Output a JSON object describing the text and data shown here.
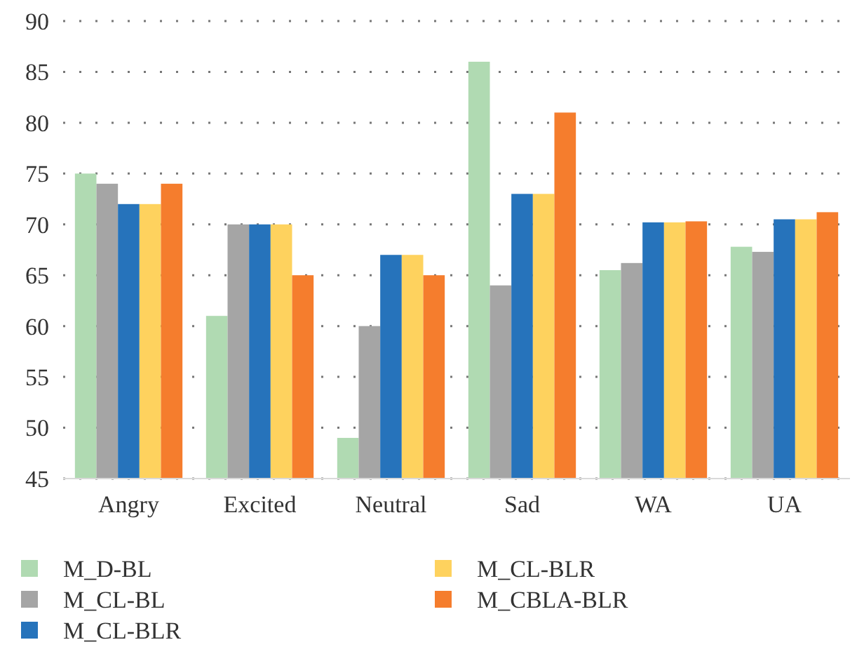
{
  "chart_data": {
    "type": "bar",
    "categories": [
      "Angry",
      "Excited",
      "Neutral",
      "Sad",
      "WA",
      "UA"
    ],
    "series": [
      {
        "name": "M_D-BL",
        "color": "#b0dab2",
        "values": [
          75,
          61,
          49,
          86,
          65.5,
          67.8
        ]
      },
      {
        "name": "M_CL-BL",
        "color": "#a5a5a5",
        "values": [
          74,
          70,
          60,
          64,
          66.2,
          67.3
        ]
      },
      {
        "name": "M_CL-BLR",
        "color": "#2673bb",
        "values": [
          72,
          70,
          67,
          73,
          70.2,
          70.5
        ]
      },
      {
        "name": "M_CL-BLR",
        "color": "#fed25e",
        "values": [
          72,
          70,
          67,
          73,
          70.2,
          70.5
        ]
      },
      {
        "name": "M_CBLA-BLR",
        "color": "#f57d2d",
        "values": [
          74,
          65,
          65,
          81,
          70.3,
          71.2
        ]
      }
    ],
    "ylim": [
      45,
      90
    ],
    "yticks": [
      45,
      50,
      55,
      60,
      65,
      70,
      75,
      80,
      85,
      90
    ],
    "grid": "y",
    "legend": "bottom"
  }
}
